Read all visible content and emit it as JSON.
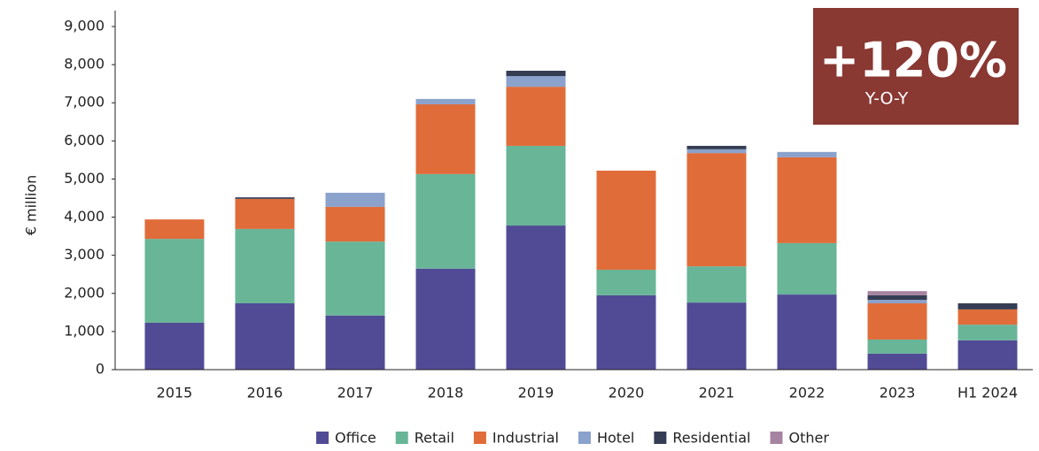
{
  "chart_data": {
    "type": "stacked_bar",
    "y_label": "€ million",
    "annotations": [
      "+120%",
      "Y-O-Y"
    ],
    "categories": [
      "2015",
      "2016",
      "2017",
      "2018",
      "2019",
      "2020",
      "2021",
      "2022",
      "2023",
      "H1 2024"
    ],
    "series": [
      {
        "name": "Office",
        "color": "#514b96",
        "values": [
          1230,
          1740,
          1420,
          2650,
          3780,
          1950,
          1760,
          1970,
          420,
          770
        ]
      },
      {
        "name": "Retail",
        "color": "#68b598",
        "values": [
          2200,
          1950,
          1940,
          2480,
          2090,
          670,
          950,
          1350,
          370,
          410
        ]
      },
      {
        "name": "Industrial",
        "color": "#e06c3a",
        "values": [
          510,
          790,
          910,
          1830,
          1550,
          2600,
          2970,
          2250,
          950,
          400
        ]
      },
      {
        "name": "Hotel",
        "color": "#8aa2cc",
        "values": [
          0,
          0,
          370,
          140,
          280,
          0,
          100,
          140,
          90,
          0
        ]
      },
      {
        "name": "Residential",
        "color": "#353d54",
        "values": [
          0,
          40,
          0,
          0,
          140,
          0,
          90,
          0,
          120,
          160
        ]
      },
      {
        "name": "Other",
        "color": "#a683a0",
        "values": [
          0,
          0,
          0,
          0,
          0,
          0,
          0,
          0,
          110,
          0
        ]
      }
    ],
    "ylim": [
      0,
      9000
    ],
    "yticks": [
      0,
      {
        "value": 1000,
        "label": "1,000"
      },
      {
        "value": 2000,
        "label": "2,000"
      },
      {
        "value": 3000,
        "label": "3,000"
      },
      {
        "value": 4000,
        "label": "4,000"
      },
      {
        "value": 5000,
        "label": "5,000"
      },
      {
        "value": 6000,
        "label": "6,000"
      },
      {
        "value": 7000,
        "label": "7,000"
      },
      {
        "value": 8000,
        "label": "8,000"
      },
      {
        "value": 9000,
        "label": "9,000"
      }
    ],
    "grid": false
  }
}
